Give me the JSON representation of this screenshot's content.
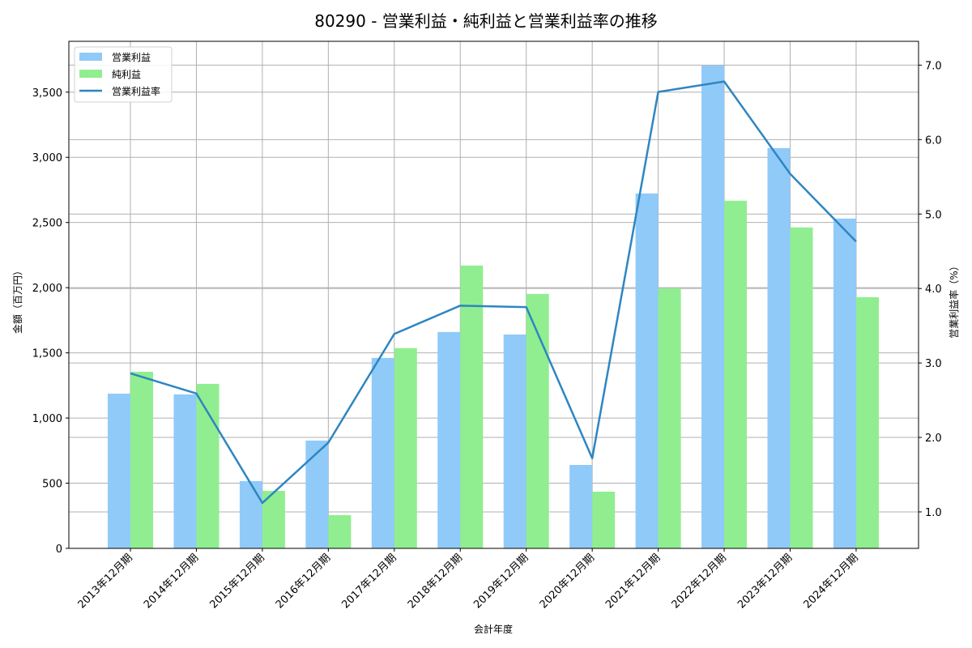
{
  "chart_data": {
    "type": "bar",
    "title": "80290 - 営業利益・純利益と営業利益率の推移",
    "xlabel": "会計年度",
    "ylabel": "金額（百万円）",
    "y2label": "営業利益率（%）",
    "categories": [
      "2013年12月期",
      "2014年12月期",
      "2015年12月期",
      "2016年12月期",
      "2017年12月期",
      "2018年12月期",
      "2019年12月期",
      "2020年12月期",
      "2021年12月期",
      "2022年12月期",
      "2023年12月期",
      "2024年12月期"
    ],
    "series": [
      {
        "name": "営業利益",
        "type": "bar",
        "axis": "left",
        "color": "#90caf9",
        "values": [
          1187,
          1181,
          516,
          827,
          1461,
          1660,
          1641,
          640,
          2723,
          3705,
          3071,
          2530
        ]
      },
      {
        "name": "純利益",
        "type": "bar",
        "axis": "left",
        "color": "#90ee90",
        "values": [
          1355,
          1262,
          441,
          255,
          1536,
          2170,
          1952,
          435,
          1995,
          2667,
          2462,
          1927
        ]
      },
      {
        "name": "営業利益率",
        "type": "line",
        "axis": "right",
        "color": "#2e86c1",
        "values": [
          2.86,
          2.59,
          1.12,
          1.93,
          3.39,
          3.77,
          3.75,
          1.72,
          6.64,
          6.78,
          5.54,
          4.63
        ]
      }
    ],
    "ylim": [
      0,
      3890
    ],
    "y2lim": [
      0.51,
      7.32
    ],
    "yticks": [
      0,
      500,
      1000,
      1500,
      2000,
      2500,
      3000,
      3500
    ],
    "ytick_labels": [
      "0",
      "500",
      "1,000",
      "1,500",
      "2,000",
      "2,500",
      "3,000",
      "3,500"
    ],
    "y2ticks": [
      1.0,
      2.0,
      3.0,
      4.0,
      5.0,
      6.0,
      7.0
    ],
    "y2tick_labels": [
      "1.0",
      "2.0",
      "3.0",
      "4.0",
      "5.0",
      "6.0",
      "7.0"
    ],
    "grid": true,
    "legend_position": "upper left"
  }
}
